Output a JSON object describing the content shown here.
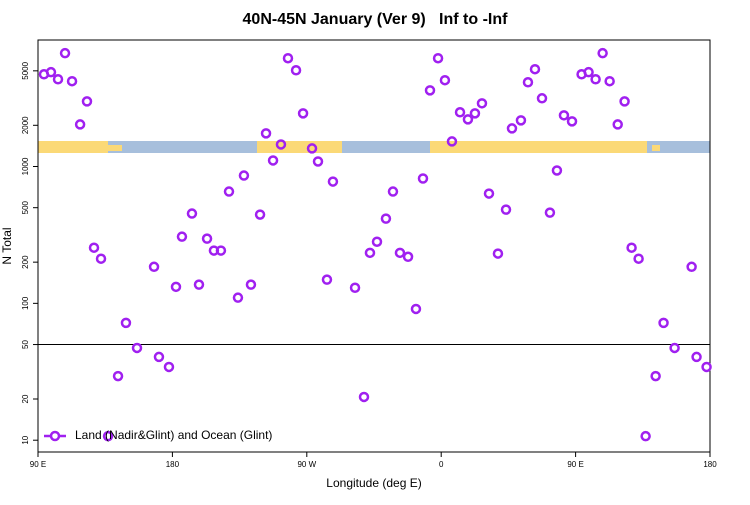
{
  "chart_data": {
    "type": "scatter",
    "title": "40N-45N January (Ver 9)   Inf to -Inf",
    "x_label": "Longitude (deg E)",
    "y_label": "N Total",
    "xlim": [
      90,
      540
    ],
    "xticks": [
      {
        "value": 90,
        "label": "90 E"
      },
      180,
      {
        "value": 270,
        "label": "90 W"
      },
      {
        "value": 360,
        "label": "0"
      },
      {
        "value": 450,
        "label": "90 E"
      },
      {
        "value": 540,
        "label": "180"
      }
    ],
    "ylim": [
      8.2,
      8400
    ],
    "yticks": [
      10,
      20,
      50,
      100,
      200,
      500,
      1000,
      2000,
      5000
    ],
    "log_y": true,
    "hline": 50,
    "legend": "bottom-left",
    "series": [
      {
        "name": "Land (Nadir&Glint) and Ocean (Glint)",
        "color": "#a020f0",
        "x": [
          94.0,
          98.7,
          103.4,
          108.1,
          112.8,
          118.2,
          122.8,
          127.5,
          132.2,
          136.9,
          143.6,
          148.9,
          156.3,
          167.7,
          171.0,
          177.7,
          182.4,
          186.4,
          193.1,
          197.8,
          203.2,
          207.8,
          212.5,
          217.9,
          223.9,
          227.9,
          232.6,
          238.7,
          242.7,
          247.4,
          252.7,
          257.4,
          262.8,
          267.5,
          273.5,
          277.5,
          283.5,
          287.5,
          302.3,
          308.3,
          312.3,
          317.0,
          323.0,
          327.7,
          332.4,
          337.8,
          343.1,
          347.8,
          352.5,
          357.9,
          362.5,
          367.2,
          372.6,
          377.9,
          382.6,
          387.3,
          392.0,
          398.0,
          403.4,
          407.4,
          413.4,
          418.1,
          422.8,
          427.5,
          432.8,
          437.5,
          442.2,
          447.6,
          454.0,
          458.7,
          463.4,
          468.1,
          472.8,
          478.2,
          482.8,
          487.5,
          492.2,
          496.9,
          503.6,
          508.9,
          516.3,
          527.7,
          531.0,
          537.7
        ],
        "values": [
          4720,
          4890,
          4340,
          6730,
          4200,
          2030,
          2990,
          255,
          212,
          10.7,
          29.4,
          72,
          47.2,
          185,
          40.6,
          34.3,
          132,
          307,
          453,
          137,
          297,
          243,
          243,
          656,
          110,
          859,
          137,
          445,
          1746,
          1107,
          1449,
          6180,
          5050,
          2445,
          1355,
          1088,
          149,
          776,
          130,
          20.7,
          234,
          282,
          416,
          656,
          234,
          219,
          91,
          817,
          3600,
          6180,
          4270,
          1525,
          2490,
          2210,
          2445,
          2895,
          634,
          231,
          484,
          1898,
          2173,
          4125,
          5140,
          3150,
          460,
          935,
          2365,
          2137,
          4720,
          4890,
          4340,
          6730,
          4200,
          2030,
          2990,
          255,
          212,
          10.7,
          29.4,
          72,
          47.2,
          185,
          40.6,
          34.3
        ]
      }
    ]
  }
}
